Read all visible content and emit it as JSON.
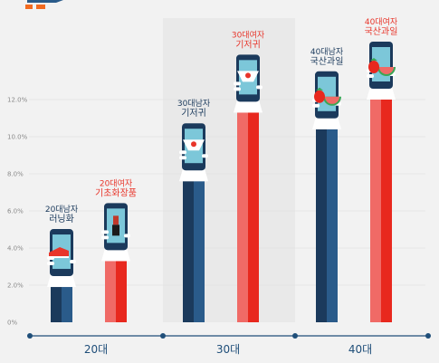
{
  "chart_data": {
    "type": "bar",
    "categories": [
      "20대",
      "30대",
      "40대"
    ],
    "yticks": [
      "0%",
      "2.0%",
      "4.0%",
      "6.0%",
      "8.0%",
      "10.0%",
      "12.0%"
    ],
    "ylim": [
      0,
      13.5
    ],
    "series": [
      {
        "values": [
          1.9,
          7.6,
          10.4
        ],
        "labels": [
          "20대남자\n러닝화",
          "30대남자\n기저귀",
          "40대남자\n국산과일"
        ]
      },
      {
        "values": [
          3.3,
          11.3,
          12.0
        ],
        "labels": [
          "20대여자\n기초화장품",
          "30대여자\n기저귀",
          "40대여자\n국산과일"
        ]
      }
    ],
    "items": [
      "shoe",
      "cosmetics",
      "diaper",
      "diaper",
      "fruit",
      "fruit"
    ]
  },
  "colors": {
    "men_dark": "#1b3a5c",
    "men_mid": "#2a5b8a",
    "women_light": "#f06a66",
    "women_red": "#e8281e",
    "axis": "#1f4e79",
    "background": "#f2f2f2",
    "panel": "#ececec",
    "grid": "#dcdcdc",
    "logo": "#f26b21"
  }
}
